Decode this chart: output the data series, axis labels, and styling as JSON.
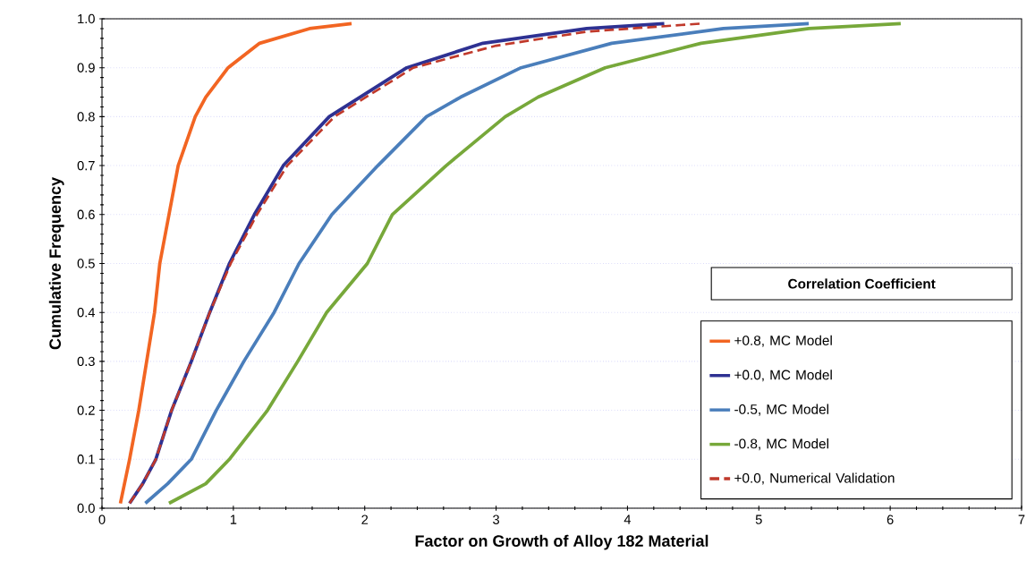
{
  "chart_data": {
    "type": "line",
    "xlabel": "Factor on Growth of Alloy 182 Material",
    "ylabel": "Cumulative Frequency",
    "legend_title": "Correlation Coefficient",
    "legend": "bottom right",
    "grid": "y",
    "xlim": [
      0,
      7
    ],
    "xticks": [
      0,
      1,
      2,
      3,
      4,
      5,
      6,
      7
    ],
    "ylim": [
      0,
      1
    ],
    "yticks": [
      {
        "value": 0,
        "label": "0.0"
      },
      0.1,
      0.2,
      0.3,
      0.4,
      0.5,
      0.6,
      0.7,
      0.8,
      0.9,
      {
        "value": 1,
        "label": "1.0"
      }
    ],
    "series": [
      {
        "name": "+0.8, MC Model",
        "color": "#f26522",
        "line_style": "solid",
        "x": [
          0.14,
          0.21,
          0.28,
          0.34,
          0.4,
          0.44,
          0.51,
          0.58,
          0.71,
          0.79,
          0.96,
          1.2,
          1.58,
          1.9
        ],
        "values": [
          0.01,
          0.1,
          0.2,
          0.3,
          0.4,
          0.5,
          0.6,
          0.7,
          0.8,
          0.84,
          0.9,
          0.95,
          0.98,
          0.99
        ]
      },
      {
        "name": "+0.0, MC Model",
        "color": "#2e3192",
        "line_style": "solid",
        "x": [
          0.21,
          0.31,
          0.41,
          0.53,
          0.68,
          0.82,
          0.97,
          1.16,
          1.38,
          1.73,
          2.32,
          2.9,
          3.69,
          4.28
        ],
        "values": [
          0.01,
          0.05,
          0.1,
          0.2,
          0.3,
          0.4,
          0.5,
          0.6,
          0.7,
          0.8,
          0.9,
          0.95,
          0.98,
          0.99
        ]
      },
      {
        "name": "-0.5, MC Model",
        "color": "#4a7ebb",
        "line_style": "solid",
        "x": [
          0.33,
          0.5,
          0.68,
          0.87,
          1.08,
          1.31,
          1.5,
          1.75,
          2.1,
          2.47,
          2.73,
          3.19,
          3.88,
          4.73,
          5.38
        ],
        "values": [
          0.01,
          0.05,
          0.1,
          0.2,
          0.3,
          0.4,
          0.5,
          0.6,
          0.7,
          0.8,
          0.84,
          0.9,
          0.95,
          0.98,
          0.99
        ]
      },
      {
        "name": "-0.8, MC Model",
        "color": "#77a83a",
        "line_style": "solid",
        "x": [
          0.51,
          0.79,
          0.97,
          1.26,
          1.49,
          1.71,
          2.02,
          2.21,
          2.62,
          3.07,
          3.32,
          3.83,
          4.56,
          5.38,
          6.08
        ],
        "values": [
          0.01,
          0.05,
          0.1,
          0.2,
          0.3,
          0.4,
          0.5,
          0.6,
          0.7,
          0.8,
          0.84,
          0.9,
          0.95,
          0.98,
          0.99
        ]
      },
      {
        "name": "+0.0, Numerical Validation",
        "color": "#c0392b",
        "line_style": "dashed",
        "x": [
          0.21,
          0.31,
          0.41,
          0.53,
          0.68,
          0.82,
          0.98,
          1.18,
          1.41,
          1.77,
          2.37,
          3.0,
          3.7,
          4.55
        ],
        "values": [
          0.01,
          0.05,
          0.1,
          0.2,
          0.3,
          0.4,
          0.5,
          0.6,
          0.7,
          0.8,
          0.9,
          0.945,
          0.974,
          0.99
        ]
      }
    ]
  }
}
